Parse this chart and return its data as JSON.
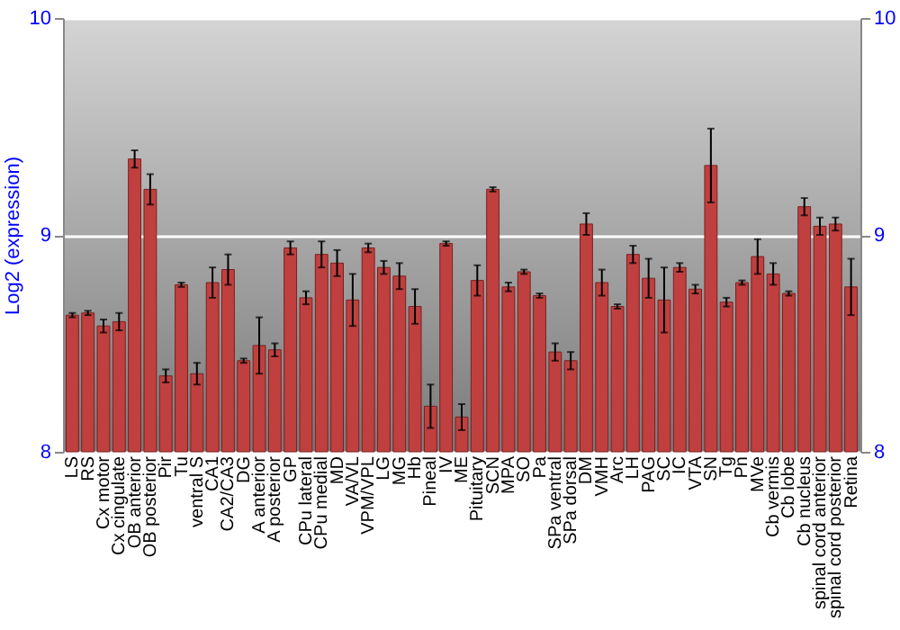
{
  "chart_data": {
    "type": "bar",
    "ylabel": "Log2 (expression)",
    "categories": [
      "LS",
      "RS",
      "Cx motor",
      "Cx cingulate",
      "OB anterior",
      "OB posterior",
      "Pir",
      "Tu",
      "ventral S",
      "CA1",
      "CA2/CA3",
      "DG",
      "A anterior",
      "A posterior",
      "GP",
      "CPu lateral",
      "CPu medial",
      "MD",
      "VA/VL",
      "VPM/VPL",
      "LG",
      "MG",
      "Hb",
      "Pineal",
      "IV",
      "ME",
      "Pituitary",
      "SCN",
      "MPA",
      "SO",
      "Pa",
      "SPa ventral",
      "SPa dorsal",
      "DM",
      "VMH",
      "Arc",
      "LH",
      "PAG",
      "SC",
      "IC",
      "VTA",
      "SN",
      "Tg",
      "Pn",
      "MVe",
      "Cb vermis",
      "Cb lobe",
      "Cb nucleus",
      "spinal cord anterior",
      "spinal cord posterior",
      "Retina"
    ],
    "series": [
      {
        "color": "#c0403f",
        "values": [
          8.63,
          8.64,
          8.58,
          8.6,
          9.35,
          9.21,
          8.35,
          8.77,
          8.36,
          8.78,
          8.84,
          8.42,
          8.49,
          8.47,
          8.94,
          8.71,
          8.91,
          8.87,
          8.7,
          8.94,
          8.85,
          8.81,
          8.67,
          8.21,
          8.96,
          8.16,
          8.79,
          9.21,
          8.76,
          8.83,
          8.72,
          8.46,
          8.42,
          9.05,
          8.78,
          8.67,
          8.91,
          8.8,
          8.7,
          8.85,
          8.75,
          9.32,
          8.69,
          8.78,
          8.9,
          8.82,
          8.73,
          9.13,
          9.04,
          9.05,
          8.76
        ],
        "errors": [
          0.01,
          0.01,
          0.03,
          0.04,
          0.04,
          0.07,
          0.03,
          0.01,
          0.05,
          0.07,
          0.07,
          0.01,
          0.13,
          0.03,
          0.03,
          0.03,
          0.06,
          0.06,
          0.12,
          0.02,
          0.03,
          0.06,
          0.08,
          0.1,
          0.01,
          0.06,
          0.07,
          0.01,
          0.02,
          0.01,
          0.01,
          0.04,
          0.04,
          0.05,
          0.06,
          0.01,
          0.04,
          0.09,
          0.15,
          0.02,
          0.02,
          0.17,
          0.02,
          0.01,
          0.08,
          0.05,
          0.01,
          0.04,
          0.04,
          0.03,
          0.13
        ]
      }
    ],
    "ylim": [
      8,
      10
    ],
    "yticks": [
      8,
      9,
      10
    ],
    "y2lim": [
      8,
      10
    ],
    "y2ticks": [
      8,
      9,
      10
    ],
    "grid": "y"
  }
}
